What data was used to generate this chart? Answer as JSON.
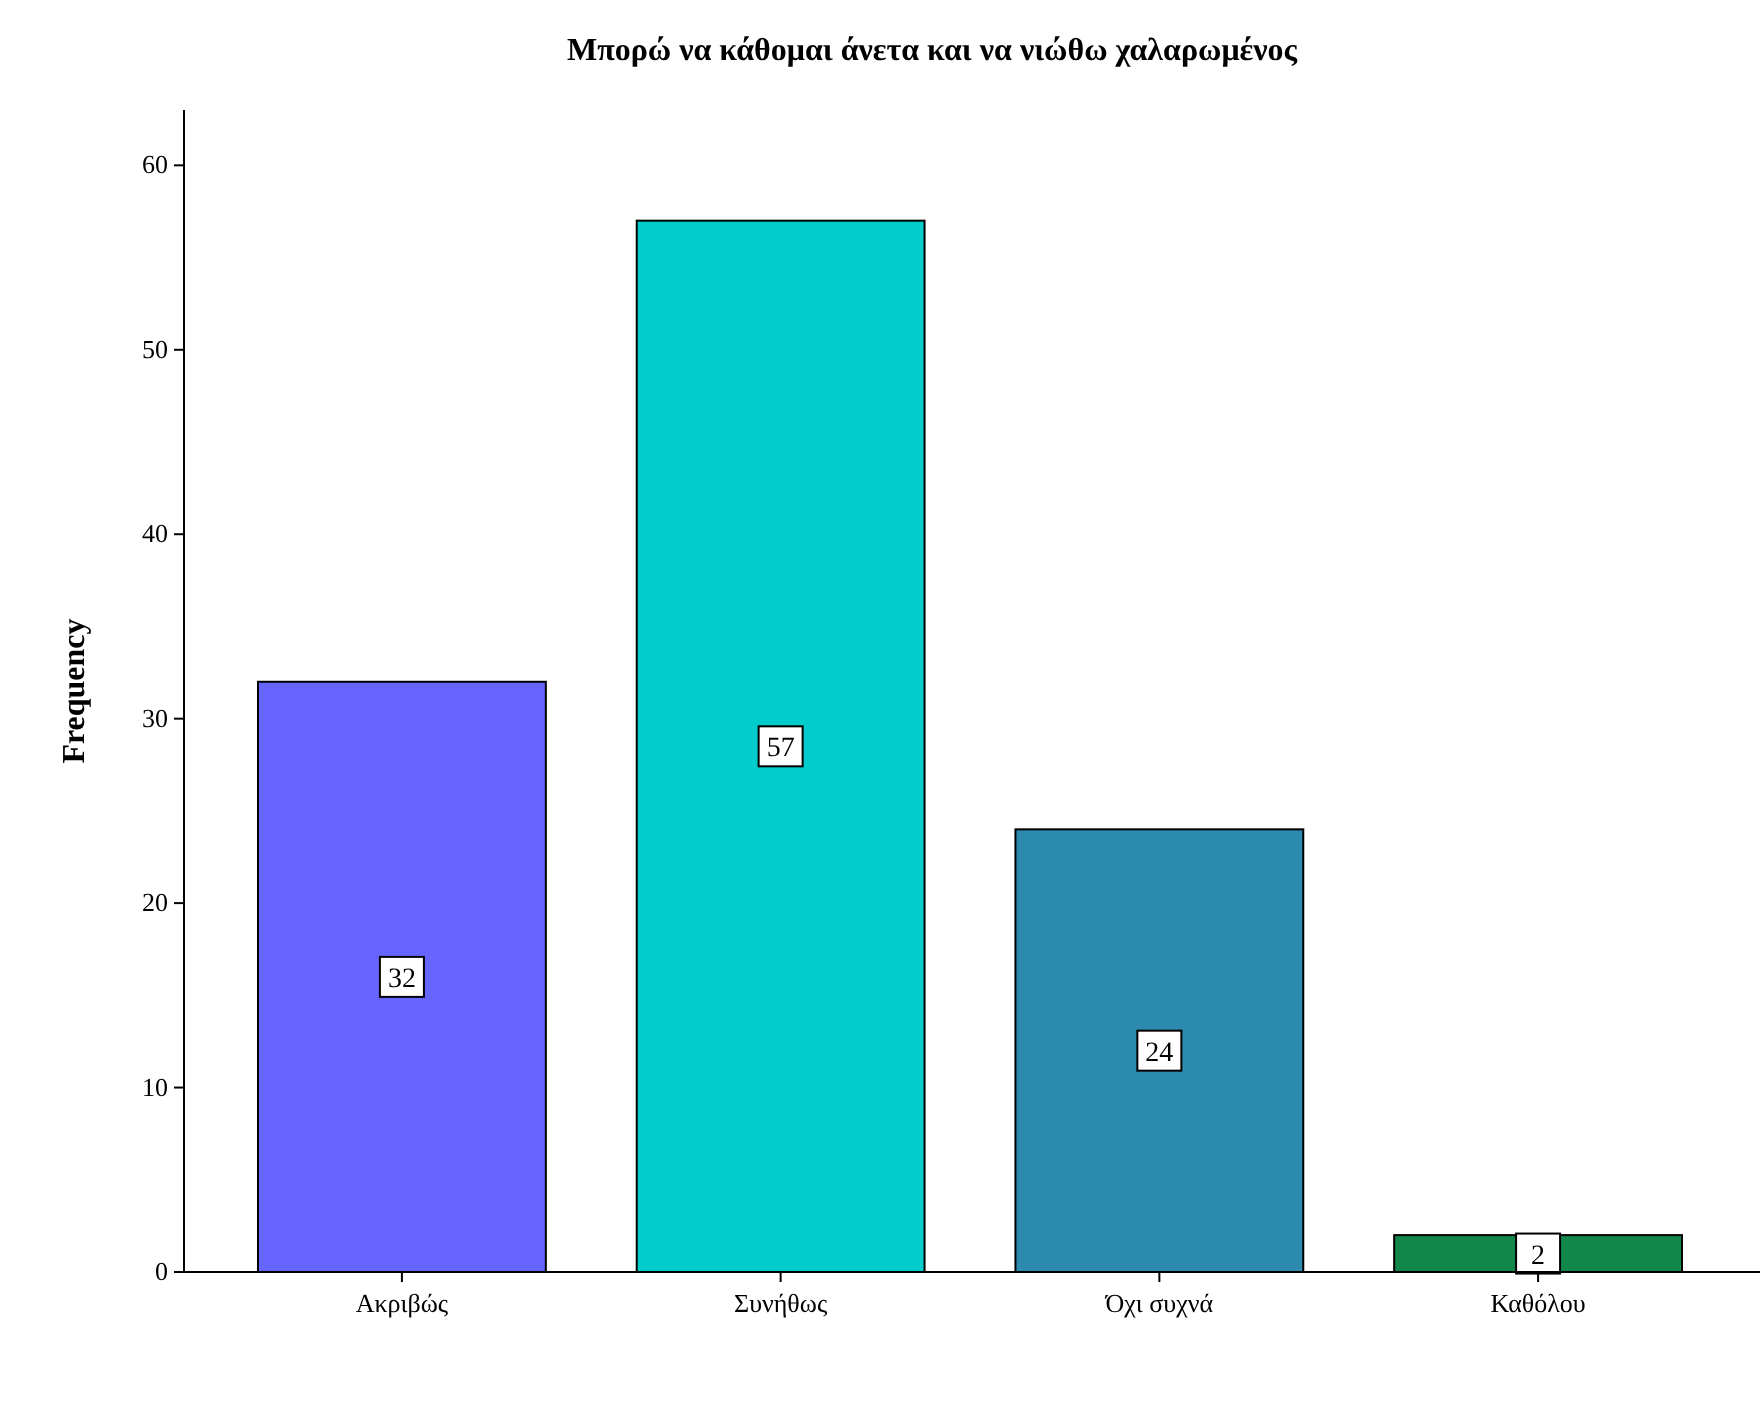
{
  "chart_data": {
    "type": "bar",
    "title": "Μπορώ να κάθομαι άνετα και να νιώθω χαλαρωμένος",
    "ylabel": "Frequency",
    "categories": [
      "Ακριβώς",
      "Συνήθως",
      "Όχι συχνά",
      "Καθόλου"
    ],
    "values": [
      32,
      57,
      24,
      2
    ],
    "colors": [
      "#6666ff",
      "#00cccc",
      "#2b8aad",
      "#11884a"
    ],
    "ylim": [
      0,
      63
    ],
    "yticks": [
      0,
      10,
      20,
      30,
      40,
      50,
      60
    ],
    "grid": false,
    "data_labels": true
  }
}
